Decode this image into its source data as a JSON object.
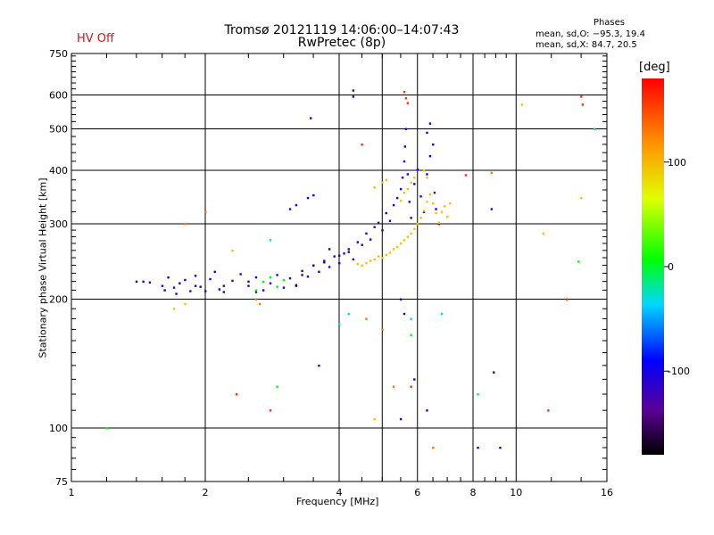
{
  "header": {
    "title_line1": "Tromsø 20121119 14:06:00–14:07:43",
    "title_line2": "RwPretec (8p)",
    "status": "HV Off",
    "phases_label": "Phases",
    "stats_o": "mean, sd,O: −95.3, 19.4",
    "stats_x": "mean, sd,X:  84.7, 20.5"
  },
  "colors": {
    "status": "#e01010",
    "grid": "#000000"
  },
  "chart_data": {
    "type": "scatter",
    "xlabel": "Frequency [MHz]",
    "ylabel": "Stationary phase Virtual Height [km]",
    "xscale": "log",
    "yscale": "log",
    "xlim": [
      1,
      16
    ],
    "ylim": [
      75,
      750
    ],
    "x_ticks": [
      1,
      2,
      4,
      6,
      8,
      10,
      16
    ],
    "y_ticks": [
      75,
      100,
      200,
      300,
      400,
      500,
      600,
      750
    ],
    "grid": true,
    "colorbar": {
      "label": "[deg]",
      "range": [
        -180,
        180
      ],
      "ticks": [
        100,
        0,
        -100
      ]
    },
    "series": [
      {
        "phase": -105,
        "points": [
          [
            1.45,
            220
          ],
          [
            1.5,
            219
          ],
          [
            1.6,
            215
          ],
          [
            1.62,
            210
          ],
          [
            1.65,
            225
          ],
          [
            1.7,
            213
          ],
          [
            1.72,
            206
          ],
          [
            1.75,
            218
          ],
          [
            1.8,
            222
          ],
          [
            1.85,
            209
          ],
          [
            1.9,
            227
          ],
          [
            1.95,
            214
          ],
          [
            2.0,
            209
          ],
          [
            2.05,
            223
          ],
          [
            2.1,
            232
          ],
          [
            2.15,
            211
          ],
          [
            2.2,
            208
          ],
          [
            2.3,
            221
          ],
          [
            2.4,
            229
          ],
          [
            2.5,
            215
          ],
          [
            2.6,
            225
          ],
          [
            2.7,
            210
          ],
          [
            2.8,
            218
          ],
          [
            2.9,
            228
          ],
          [
            3.0,
            213
          ],
          [
            3.1,
            224
          ],
          [
            3.2,
            216
          ],
          [
            3.3,
            233
          ],
          [
            3.4,
            226
          ],
          [
            3.5,
            240
          ],
          [
            3.6,
            232
          ],
          [
            3.7,
            246
          ],
          [
            3.8,
            238
          ],
          [
            3.9,
            252
          ],
          [
            4.0,
            243
          ],
          [
            4.1,
            256
          ],
          [
            4.2,
            262
          ],
          [
            4.3,
            248
          ],
          [
            4.4,
            272
          ],
          [
            4.5,
            268
          ],
          [
            4.6,
            285
          ],
          [
            4.7,
            276
          ],
          [
            4.8,
            295
          ],
          [
            4.9,
            302
          ],
          [
            5.0,
            290
          ],
          [
            5.1,
            318
          ],
          [
            5.2,
            305
          ],
          [
            5.3,
            332
          ],
          [
            5.4,
            345
          ],
          [
            5.5,
            362
          ],
          [
            5.55,
            385
          ],
          [
            5.6,
            420
          ],
          [
            5.62,
            455
          ],
          [
            5.65,
            500
          ],
          [
            5.7,
            392
          ],
          [
            5.75,
            338
          ],
          [
            5.8,
            310
          ],
          [
            5.9,
            372
          ],
          [
            6.0,
            402
          ],
          [
            6.1,
            348
          ],
          [
            6.2,
            320
          ],
          [
            6.3,
            392
          ],
          [
            6.4,
            432
          ],
          [
            6.5,
            460
          ],
          [
            6.55,
            355
          ],
          [
            6.6,
            325
          ],
          [
            6.7,
            300
          ],
          [
            3.45,
            530
          ],
          [
            4.3,
            615
          ],
          [
            4.3,
            595
          ],
          [
            3.4,
            345
          ],
          [
            3.5,
            350
          ],
          [
            3.1,
            325
          ],
          [
            3.2,
            332
          ],
          [
            8.8,
            325
          ],
          [
            6.3,
            490
          ],
          [
            6.4,
            515
          ],
          [
            3.6,
            140
          ],
          [
            5.5,
            200
          ],
          [
            5.6,
            185
          ],
          [
            5.5,
            105
          ],
          [
            5.9,
            130
          ],
          [
            6.3,
            110
          ],
          [
            8.2,
            90
          ],
          [
            9.2,
            90
          ]
        ]
      },
      {
        "phase": -150,
        "points": [
          [
            1.4,
            220
          ],
          [
            2.5,
            220
          ],
          [
            3.2,
            215
          ],
          [
            3.3,
            228
          ],
          [
            3.5,
            240
          ],
          [
            3.7,
            244
          ],
          [
            3.8,
            262
          ],
          [
            4.0,
            253
          ],
          [
            4.2,
            258
          ],
          [
            8.9,
            135
          ],
          [
            1.9,
            215
          ],
          [
            2.2,
            215
          ],
          [
            2.6,
            208
          ]
        ]
      },
      {
        "phase": 95,
        "points": [
          [
            4.4,
            242
          ],
          [
            4.5,
            240
          ],
          [
            4.6,
            243
          ],
          [
            4.7,
            246
          ],
          [
            4.8,
            248
          ],
          [
            4.9,
            252
          ],
          [
            5.0,
            250
          ],
          [
            5.1,
            254
          ],
          [
            5.2,
            257
          ],
          [
            5.3,
            262
          ],
          [
            5.4,
            265
          ],
          [
            5.5,
            270
          ],
          [
            5.6,
            275
          ],
          [
            5.7,
            280
          ],
          [
            5.8,
            285
          ],
          [
            5.9,
            292
          ],
          [
            6.0,
            300
          ],
          [
            6.1,
            310
          ],
          [
            6.2,
            322
          ],
          [
            6.3,
            338
          ],
          [
            6.4,
            352
          ],
          [
            6.5,
            335
          ],
          [
            6.6,
            318
          ],
          [
            6.7,
            302
          ],
          [
            6.8,
            320
          ],
          [
            6.9,
            330
          ],
          [
            7.0,
            312
          ],
          [
            7.1,
            335
          ],
          [
            5.5,
            340
          ],
          [
            5.6,
            355
          ],
          [
            5.7,
            362
          ],
          [
            5.8,
            375
          ],
          [
            5.9,
            385
          ],
          [
            6.2,
            400
          ],
          [
            6.3,
            385
          ],
          [
            5.0,
            375
          ],
          [
            5.1,
            380
          ],
          [
            4.8,
            365
          ],
          [
            1.7,
            190
          ],
          [
            1.8,
            195
          ],
          [
            2.3,
            260
          ],
          [
            4.8,
            105
          ],
          [
            10.3,
            570
          ],
          [
            11.5,
            285
          ],
          [
            14.0,
            345
          ]
        ]
      },
      {
        "phase": 5,
        "points": [
          [
            2.6,
            210
          ],
          [
            2.7,
            220
          ],
          [
            2.9,
            214
          ],
          [
            3.0,
            222
          ],
          [
            2.8,
            225
          ],
          [
            1.2,
            100
          ],
          [
            2.9,
            125
          ],
          [
            5.8,
            165
          ],
          [
            13.8,
            245
          ]
        ]
      },
      {
        "phase": 160,
        "points": [
          [
            2.35,
            120
          ],
          [
            2.8,
            110
          ],
          [
            4.5,
            460
          ],
          [
            5.6,
            610
          ],
          [
            5.65,
            590
          ],
          [
            5.7,
            575
          ],
          [
            14.0,
            595
          ],
          [
            14.1,
            570
          ],
          [
            5.8,
            125
          ],
          [
            7.7,
            390
          ],
          [
            11.8,
            110
          ],
          [
            13.0,
            200
          ]
        ]
      },
      {
        "phase": 130,
        "points": [
          [
            1.8,
            300
          ],
          [
            2.0,
            320
          ],
          [
            2.6,
            200
          ],
          [
            2.65,
            195
          ],
          [
            5.3,
            125
          ],
          [
            6.5,
            90
          ],
          [
            8.8,
            395
          ],
          [
            4.6,
            180
          ],
          [
            5.0,
            170
          ]
        ]
      },
      {
        "phase": -30,
        "points": [
          [
            2.8,
            275
          ],
          [
            4.0,
            175
          ],
          [
            5.8,
            180
          ],
          [
            6.8,
            185
          ],
          [
            8.2,
            120
          ],
          [
            15.0,
            500
          ],
          [
            4.2,
            185
          ]
        ]
      }
    ]
  }
}
